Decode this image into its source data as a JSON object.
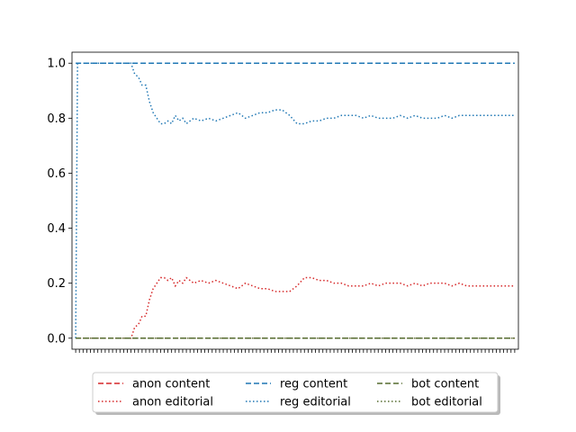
{
  "chart_data": {
    "type": "line",
    "title": "",
    "xlabel": "",
    "ylabel": "",
    "ylim": [
      -0.04,
      1.04
    ],
    "y_ticks": [
      "0.0",
      "0.2",
      "0.4",
      "0.6",
      "0.8",
      "1.0"
    ],
    "x_tick_count": 120,
    "x_tick_labels": "none",
    "grid": false,
    "legend": {
      "placement": "below",
      "columns": 3,
      "shadow": true
    },
    "series": [
      {
        "name": "anon content",
        "color": "#d62728",
        "style": "dashed",
        "x": [
          0,
          119
        ],
        "y": [
          0.0,
          0.0
        ]
      },
      {
        "name": "anon editorial",
        "color": "#d62728",
        "style": "dotted",
        "x": [
          0,
          15,
          16,
          17,
          18,
          19,
          20,
          21,
          22,
          23,
          24,
          25,
          26,
          27,
          28,
          29,
          30,
          32,
          34,
          36,
          38,
          40,
          42,
          44,
          46,
          48,
          50,
          52,
          54,
          56,
          58,
          60,
          62,
          64,
          66,
          68,
          70,
          72,
          74,
          76,
          78,
          80,
          82,
          84,
          86,
          88,
          90,
          92,
          94,
          96,
          98,
          100,
          102,
          104,
          106,
          108,
          110,
          112,
          114,
          116,
          119
        ],
        "y": [
          0.0,
          0.0,
          0.04,
          0.05,
          0.08,
          0.08,
          0.14,
          0.18,
          0.2,
          0.22,
          0.22,
          0.21,
          0.22,
          0.19,
          0.21,
          0.2,
          0.22,
          0.2,
          0.21,
          0.2,
          0.21,
          0.2,
          0.19,
          0.18,
          0.2,
          0.19,
          0.18,
          0.18,
          0.17,
          0.17,
          0.17,
          0.19,
          0.22,
          0.22,
          0.21,
          0.21,
          0.2,
          0.2,
          0.19,
          0.19,
          0.19,
          0.2,
          0.19,
          0.2,
          0.2,
          0.2,
          0.19,
          0.2,
          0.19,
          0.2,
          0.2,
          0.2,
          0.19,
          0.2,
          0.19,
          0.19,
          0.19,
          0.19,
          0.19,
          0.19,
          0.19
        ]
      },
      {
        "name": "reg content",
        "color": "#1f77b4",
        "style": "dashed",
        "x": [
          0,
          119
        ],
        "y": [
          1.0,
          1.0
        ]
      },
      {
        "name": "reg editorial",
        "color": "#1f77b4",
        "style": "dotted",
        "x": [
          0,
          0.5,
          15,
          16,
          17,
          18,
          19,
          20,
          21,
          22,
          23,
          24,
          25,
          26,
          27,
          28,
          29,
          30,
          32,
          34,
          36,
          38,
          40,
          42,
          44,
          46,
          48,
          50,
          52,
          54,
          56,
          58,
          60,
          62,
          64,
          66,
          68,
          70,
          72,
          74,
          76,
          78,
          80,
          82,
          84,
          86,
          88,
          90,
          92,
          94,
          96,
          98,
          100,
          102,
          104,
          106,
          108,
          110,
          112,
          114,
          116,
          119
        ],
        "y": [
          0.0,
          1.0,
          1.0,
          0.96,
          0.95,
          0.92,
          0.92,
          0.86,
          0.82,
          0.8,
          0.78,
          0.78,
          0.79,
          0.78,
          0.81,
          0.79,
          0.8,
          0.78,
          0.8,
          0.79,
          0.8,
          0.79,
          0.8,
          0.81,
          0.82,
          0.8,
          0.81,
          0.82,
          0.82,
          0.83,
          0.83,
          0.81,
          0.78,
          0.78,
          0.79,
          0.79,
          0.8,
          0.8,
          0.81,
          0.81,
          0.81,
          0.8,
          0.81,
          0.8,
          0.8,
          0.8,
          0.81,
          0.8,
          0.81,
          0.8,
          0.8,
          0.8,
          0.81,
          0.8,
          0.81,
          0.81,
          0.81,
          0.81,
          0.81,
          0.81,
          0.81,
          0.81
        ]
      },
      {
        "name": "bot content",
        "color": "#556b2f",
        "style": "dashed",
        "x": [
          0,
          119
        ],
        "y": [
          0.0,
          0.0
        ]
      },
      {
        "name": "bot editorial",
        "color": "#556b2f",
        "style": "dotted",
        "x": [
          0,
          119
        ],
        "y": [
          0.0,
          0.0
        ]
      }
    ]
  }
}
